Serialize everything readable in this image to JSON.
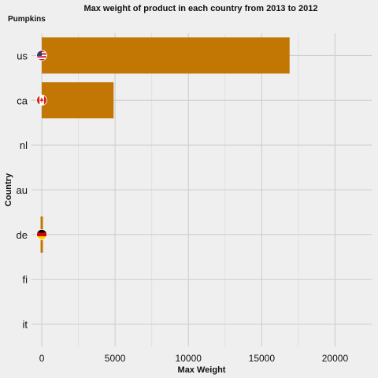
{
  "chart_data": {
    "type": "bar",
    "orientation": "horizontal",
    "title": "Max weight of product in each country from 2013 to 2012",
    "subtitle": "Pumpkins",
    "xlabel": "Max Weight",
    "ylabel": "Country",
    "categories": [
      "us",
      "ca",
      "nl",
      "au",
      "de",
      "fi",
      "it"
    ],
    "values": [
      16900,
      4900,
      0,
      0,
      120,
      0,
      0
    ],
    "xlim": [
      -700,
      22500
    ],
    "xticks": [
      0,
      5000,
      10000,
      15000,
      20000
    ],
    "xtick_labels": [
      "0",
      "5000",
      "10000",
      "15000",
      "20000"
    ],
    "bar_color": "#c27603",
    "grid": true,
    "flags": [
      {
        "country": "us",
        "icon": "us-flag-icon"
      },
      {
        "country": "ca",
        "icon": "canada-flag-icon"
      },
      {
        "country": "de",
        "icon": "germany-flag-icon"
      }
    ]
  }
}
